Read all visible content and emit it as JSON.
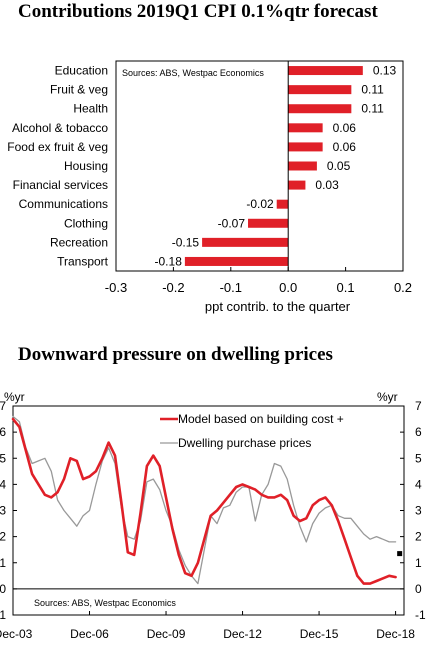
{
  "chart_data": [
    {
      "type": "bar",
      "orientation": "horizontal",
      "title": "Contributions 2019Q1 CPI 0.1%qtr forecast",
      "xlabel": "ppt contrib. to the quarter",
      "source": "Sources: ABS, Westpac Economics",
      "categories": [
        "Education",
        "Fruit & veg",
        "Health",
        "Alcohol & tobacco",
        "Food ex fruit & veg",
        "Housing",
        "Financial services",
        "Communications",
        "Clothing",
        "Recreation",
        "Transport"
      ],
      "values": [
        0.13,
        0.11,
        0.11,
        0.06,
        0.06,
        0.05,
        0.03,
        -0.02,
        -0.07,
        -0.15,
        -0.18
      ],
      "value_labels": [
        "0.13",
        "0.11",
        "0.11",
        "0.06",
        "0.06",
        "0.05",
        "0.03",
        "-0.02",
        "-0.07",
        "-0.15",
        "-0.18"
      ],
      "xlim": [
        -0.3,
        0.2
      ],
      "xticks": [
        "-0.3",
        "-0.2",
        "-0.1",
        "0.0",
        "0.1",
        "0.2"
      ],
      "bar_color": "#e02028"
    },
    {
      "type": "line",
      "title": "Downward pressure on dwelling prices",
      "source": "Sources: ABS, Westpac Economics",
      "ylabel_left": "%yr",
      "ylabel_right": "%yr",
      "ylim": [
        -1,
        7
      ],
      "yticks": [
        "-1",
        "0",
        "1",
        "2",
        "3",
        "4",
        "5",
        "6",
        "7"
      ],
      "xlim": [
        2003.92,
        2019.25
      ],
      "xticks": [
        {
          "label": "Dec-03",
          "x": 2003.92
        },
        {
          "label": "Dec-06",
          "x": 2006.92
        },
        {
          "label": "Dec-09",
          "x": 2009.92
        },
        {
          "label": "Dec-12",
          "x": 2012.92
        },
        {
          "label": "Dec-15",
          "x": 2015.92
        },
        {
          "label": "Dec-18",
          "x": 2018.92
        }
      ],
      "series": [
        {
          "name": "Model based on building cost +",
          "color": "#e02028",
          "x": [
            2003.92,
            2004.17,
            2004.42,
            2004.67,
            2004.92,
            2005.17,
            2005.42,
            2005.67,
            2005.92,
            2006.17,
            2006.42,
            2006.67,
            2006.92,
            2007.17,
            2007.42,
            2007.67,
            2007.92,
            2008.17,
            2008.42,
            2008.67,
            2008.92,
            2009.17,
            2009.42,
            2009.67,
            2009.92,
            2010.17,
            2010.42,
            2010.67,
            2010.92,
            2011.17,
            2011.42,
            2011.67,
            2011.92,
            2012.17,
            2012.42,
            2012.67,
            2012.92,
            2013.17,
            2013.42,
            2013.67,
            2013.92,
            2014.17,
            2014.42,
            2014.67,
            2014.92,
            2015.17,
            2015.42,
            2015.67,
            2015.92,
            2016.17,
            2016.42,
            2016.67,
            2016.92,
            2017.17,
            2017.42,
            2017.67,
            2017.92,
            2018.17,
            2018.42,
            2018.67,
            2018.92
          ],
          "y": [
            6.5,
            6.2,
            5.3,
            4.4,
            4.0,
            3.6,
            3.5,
            3.7,
            4.2,
            5.0,
            4.9,
            4.2,
            4.3,
            4.5,
            5.0,
            5.6,
            5.1,
            3.3,
            1.4,
            1.3,
            2.9,
            4.7,
            5.1,
            4.7,
            3.5,
            2.3,
            1.3,
            0.6,
            0.5,
            1.0,
            1.9,
            2.8,
            3.0,
            3.3,
            3.6,
            3.9,
            4.0,
            3.9,
            3.8,
            3.6,
            3.5,
            3.5,
            3.6,
            3.4,
            2.8,
            2.6,
            2.7,
            3.2,
            3.4,
            3.5,
            3.2,
            2.6,
            1.9,
            1.2,
            0.5,
            0.2,
            0.2,
            0.3,
            0.4,
            0.5,
            0.45
          ]
        },
        {
          "name": "Dwelling purchase prices",
          "color": "#999999",
          "x": [
            2003.92,
            2004.17,
            2004.42,
            2004.67,
            2004.92,
            2005.17,
            2005.42,
            2005.67,
            2005.92,
            2006.17,
            2006.42,
            2006.67,
            2006.92,
            2007.17,
            2007.42,
            2007.67,
            2007.92,
            2008.17,
            2008.42,
            2008.67,
            2008.92,
            2009.17,
            2009.42,
            2009.67,
            2009.92,
            2010.17,
            2010.42,
            2010.67,
            2010.92,
            2011.17,
            2011.42,
            2011.67,
            2011.92,
            2012.17,
            2012.42,
            2012.67,
            2012.92,
            2013.17,
            2013.42,
            2013.67,
            2013.92,
            2014.17,
            2014.42,
            2014.67,
            2014.92,
            2015.17,
            2015.42,
            2015.67,
            2015.92,
            2016.17,
            2016.42,
            2016.67,
            2016.92,
            2017.17,
            2017.42,
            2017.67,
            2017.92,
            2018.17,
            2018.42,
            2018.67,
            2018.92
          ],
          "y": [
            6.6,
            6.4,
            5.4,
            4.8,
            4.9,
            5.0,
            4.5,
            3.4,
            3.0,
            2.7,
            2.4,
            2.8,
            3.0,
            4.0,
            4.9,
            5.4,
            4.8,
            3.1,
            2.0,
            1.9,
            2.6,
            4.1,
            4.2,
            3.8,
            3.0,
            2.4,
            1.5,
            0.9,
            0.5,
            0.2,
            1.5,
            2.8,
            2.5,
            3.1,
            3.2,
            3.7,
            3.9,
            3.9,
            2.6,
            3.6,
            4.0,
            4.8,
            4.7,
            4.2,
            3.2,
            2.4,
            1.8,
            2.5,
            2.9,
            3.1,
            3.2,
            2.8,
            2.7,
            2.7,
            2.4,
            2.1,
            1.9,
            2.0,
            1.9,
            1.8,
            1.8
          ]
        }
      ],
      "point_marker": {
        "x": 2019.08,
        "y": 1.35
      }
    }
  ]
}
